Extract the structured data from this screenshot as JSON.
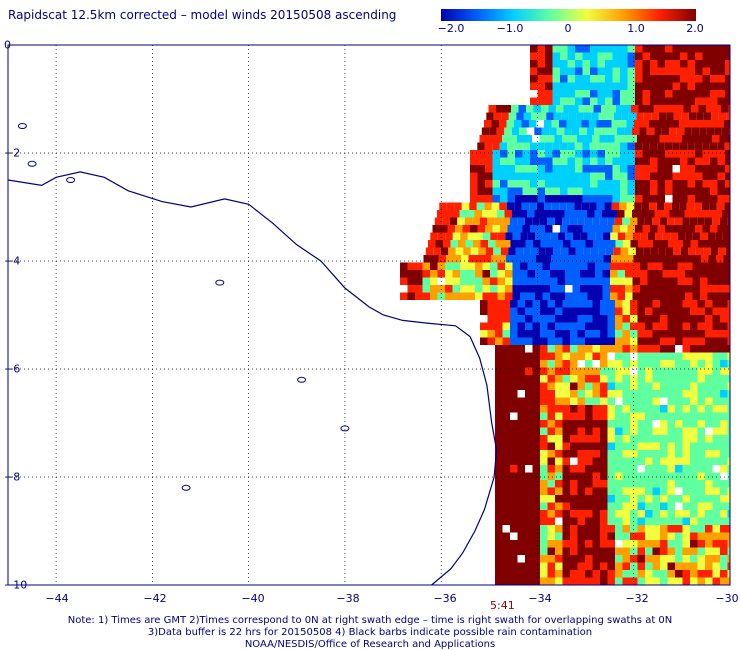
{
  "title": "Rapidscat 12.5km corrected – model winds 20150508 ascending",
  "colorbar": {
    "ticks": [
      "−2.0",
      "−1.0",
      "0",
      "1.0",
      "2.0"
    ],
    "tick_values": [
      -2.0,
      -1.0,
      0,
      1.0,
      2.0
    ],
    "range": [
      -2.0,
      2.0
    ],
    "colors": [
      "#0000b0",
      "#0060ff",
      "#00d0ff",
      "#60ffa0",
      "#f0ff40",
      "#ffa000",
      "#ff2000",
      "#800000"
    ]
  },
  "map": {
    "lon_range": [
      -45.0,
      -30.0
    ],
    "lat_range": [
      -10.0,
      0.0
    ],
    "x_ticks": [
      "−44",
      "−42",
      "−40",
      "−38",
      "−36",
      "−34",
      "−32",
      "−30"
    ],
    "x_tick_values": [
      -44,
      -42,
      -40,
      -38,
      -36,
      -34,
      -32,
      -30
    ],
    "y_ticks": [
      "0",
      "−2",
      "−4",
      "−6",
      "−8",
      "−10"
    ],
    "y_tick_values": [
      0,
      -2,
      -4,
      -6,
      -8,
      -10
    ],
    "grid": true,
    "coastline_color": "#000080",
    "swath_time": "5:41",
    "swath_lon": -34.2
  },
  "notes": [
    "Note: 1) Times are GMT 2)Times correspond to 0N at right swath edge – time is right swath for overlapping swaths at 0N",
    "3)Data buffer is 22 hrs for 20150508 4) Black barbs indicate possible rain contamination",
    "NOAA/NESDIS/Office of Research and Applications"
  ]
}
